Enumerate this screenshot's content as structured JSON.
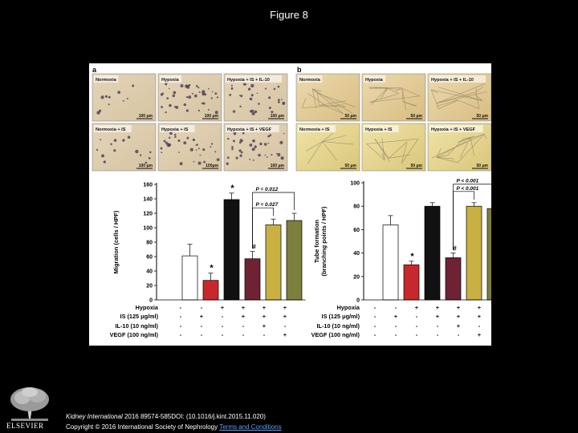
{
  "page": {
    "title": "Figure 8"
  },
  "panel_a": {
    "letter": "a",
    "micrographs": [
      {
        "label": "Normoxia",
        "scale": "100 μm"
      },
      {
        "label": "Hypoxia",
        "scale": "100 μm"
      },
      {
        "label": "Hypoxia + IS + IL-10",
        "scale": "100 μm"
      },
      {
        "label": "Normoxia + IS",
        "scale": "100 μm"
      },
      {
        "label": "Hypoxia + IS",
        "scale": "100μm"
      },
      {
        "label": "Hypoxia + IS + VEGF",
        "scale": "100 μm"
      }
    ]
  },
  "panel_b": {
    "letter": "b",
    "micrographs": [
      {
        "label": "Normoxia",
        "scale": "50 μm"
      },
      {
        "label": "Hypoxia",
        "scale": "50 μm"
      },
      {
        "label": "Hypoxia + IS + IL-10",
        "scale": "50 μm"
      },
      {
        "label": "Normoxia + IS",
        "scale": "50 μm"
      },
      {
        "label": "Hypoxia + IS",
        "scale": "50 μm"
      },
      {
        "label": "Hypoxia + IS + VEGF",
        "scale": "50 μm"
      }
    ]
  },
  "colors": {
    "bar_fills": [
      "#ffffff",
      "#c8282d",
      "#111111",
      "#6e2233",
      "#c8b043",
      "#7d7f3c"
    ]
  },
  "chart_data": [
    {
      "type": "bar",
      "ylabel": "Migration (cells / HPF)",
      "ylim": [
        0,
        160
      ],
      "yticks": [
        0,
        20,
        40,
        60,
        80,
        100,
        120,
        140,
        160
      ],
      "values": [
        61,
        27,
        139,
        57,
        104,
        110
      ],
      "errors": [
        16,
        10,
        9,
        10,
        8,
        10
      ],
      "markers": [
        "",
        "*",
        "*",
        "#",
        "",
        ""
      ],
      "annotations": [
        {
          "text": "P = 0.012",
          "from": 3,
          "to": 5
        },
        {
          "text": "P = 0.027",
          "from": 3,
          "to": 4
        }
      ]
    },
    {
      "type": "bar",
      "ylabel": "Tube formation (branching points / HPF)",
      "ylim": [
        0,
        100
      ],
      "yticks": [
        0,
        20,
        40,
        60,
        80,
        100
      ],
      "values": [
        64,
        30,
        80,
        36,
        80,
        78
      ],
      "errors": [
        8,
        3,
        3,
        4,
        3,
        3
      ],
      "markers": [
        "",
        "*",
        "",
        "#",
        "",
        ""
      ],
      "annotations": [
        {
          "text": "P < 0.001",
          "from": 3,
          "to": 5
        },
        {
          "text": "P < 0.001",
          "from": 3,
          "to": 4
        }
      ]
    }
  ],
  "conditions": [
    {
      "label": "Hypoxia",
      "values": [
        "-",
        "-",
        "+",
        "+",
        "+",
        "+"
      ]
    },
    {
      "label": "IS (125 μg/ml)",
      "values": [
        "-",
        "+",
        "-",
        "+",
        "+",
        "+"
      ]
    },
    {
      "label": "IL-10 (10 ng/ml)",
      "values": [
        "-",
        "-",
        "-",
        "-",
        "+",
        "-"
      ]
    },
    {
      "label": "VEGF (100 ng/ml)",
      "values": [
        "-",
        "-",
        "-",
        "-",
        "-",
        "+"
      ]
    }
  ],
  "footer": {
    "journal": "Kidney International",
    "citation": " 2016 89574-585DOI: (10.1016/j.kint.2015.11.020)",
    "copyright": "Copyright © 2016 International Society of Nephrology ",
    "link": "Terms and Conditions"
  },
  "logo": {
    "icon": "elsevier-tree-logo",
    "text": "ELSEVIER"
  }
}
